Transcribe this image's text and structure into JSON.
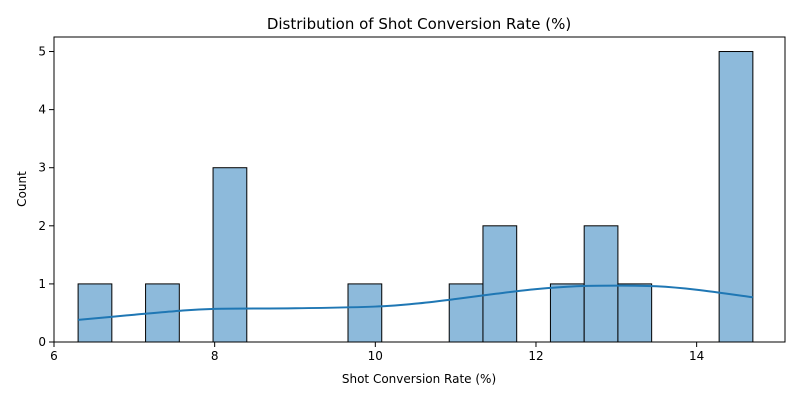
{
  "chart_data": {
    "type": "bar",
    "subtype": "histogram-with-kde",
    "title": "Distribution of Shot Conversion Rate (%)",
    "xlabel": "Shot Conversion Rate (%)",
    "ylabel": "Count",
    "xlim": [
      6.0,
      15.1
    ],
    "ylim": [
      0,
      5.25
    ],
    "xticks": [
      6,
      8,
      10,
      12,
      14
    ],
    "yticks": [
      0,
      1,
      2,
      3,
      4,
      5
    ],
    "grid": false,
    "bins": [
      {
        "x0": 6.3,
        "x1": 6.72,
        "count": 1
      },
      {
        "x0": 7.14,
        "x1": 7.56,
        "count": 1
      },
      {
        "x0": 7.98,
        "x1": 8.4,
        "count": 3
      },
      {
        "x0": 9.66,
        "x1": 10.08,
        "count": 1
      },
      {
        "x0": 10.92,
        "x1": 11.34,
        "count": 1
      },
      {
        "x0": 11.34,
        "x1": 11.76,
        "count": 2
      },
      {
        "x0": 12.18,
        "x1": 12.6,
        "count": 1
      },
      {
        "x0": 12.6,
        "x1": 13.02,
        "count": 2
      },
      {
        "x0": 13.02,
        "x1": 13.44,
        "count": 1
      },
      {
        "x0": 14.28,
        "x1": 14.7,
        "count": 5
      }
    ],
    "kde": {
      "x": [
        6.3,
        7.0,
        7.5,
        8.0,
        9.0,
        10.0,
        10.5,
        11.0,
        11.5,
        12.0,
        12.5,
        13.0,
        13.5,
        14.0,
        14.7
      ],
      "y": [
        0.38,
        0.47,
        0.53,
        0.57,
        0.58,
        0.61,
        0.66,
        0.74,
        0.83,
        0.91,
        0.96,
        0.97,
        0.96,
        0.9,
        0.77
      ]
    },
    "colors": {
      "bar_fill": "#8dbadb",
      "bar_edge": "#000000",
      "kde_line": "#1f77b4"
    }
  }
}
